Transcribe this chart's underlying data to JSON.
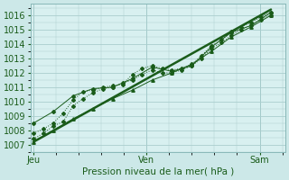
{
  "xlabel": "Pression niveau de la mer( hPa )",
  "bg_color": "#cce8e8",
  "plot_bg_color": "#d8f0f0",
  "grid_color": "#aacece",
  "line_color": "#1a5c1a",
  "x_ticks_pos": [
    0,
    0.4762,
    0.9524
  ],
  "x_tick_labels": [
    "Jeu",
    "Ven",
    "Sam"
  ],
  "ylim": [
    1006.5,
    1016.8
  ],
  "xlim": [
    -0.01,
    1.06
  ],
  "yticks": [
    1007,
    1008,
    1009,
    1010,
    1011,
    1012,
    1013,
    1014,
    1015,
    1016
  ],
  "series1_x": [
    0.0,
    0.042,
    0.083,
    0.125,
    0.167,
    0.208,
    0.25,
    0.292,
    0.333,
    0.375,
    0.417,
    0.458,
    0.5,
    0.542,
    0.583,
    0.625,
    0.667,
    0.708,
    0.75,
    0.792,
    0.833,
    0.875,
    0.917,
    0.958,
    1.0
  ],
  "series1_y": [
    1007.4,
    1007.8,
    1008.3,
    1008.6,
    1009.7,
    1010.2,
    1010.6,
    1010.9,
    1011.0,
    1011.3,
    1011.5,
    1011.9,
    1012.2,
    1012.0,
    1012.0,
    1012.2,
    1012.5,
    1013.0,
    1013.7,
    1014.1,
    1014.6,
    1015.0,
    1015.3,
    1015.7,
    1016.0
  ],
  "series2_x": [
    0.0,
    0.042,
    0.083,
    0.125,
    0.167,
    0.208,
    0.25,
    0.292,
    0.333,
    0.375,
    0.417,
    0.458,
    0.5,
    0.542,
    0.583,
    0.625,
    0.667,
    0.708,
    0.75,
    0.792,
    0.833,
    0.875,
    0.917,
    0.958,
    1.0
  ],
  "series2_y": [
    1007.8,
    1008.1,
    1008.5,
    1009.2,
    1010.1,
    1010.7,
    1010.8,
    1011.0,
    1011.1,
    1011.2,
    1011.9,
    1012.3,
    1012.5,
    1012.3,
    1012.2,
    1012.3,
    1012.6,
    1013.2,
    1013.9,
    1014.3,
    1014.9,
    1015.2,
    1015.5,
    1015.9,
    1016.2
  ],
  "series3_x": [
    0.0,
    0.083,
    0.167,
    0.25,
    0.333,
    0.417,
    0.5,
    0.583,
    0.667,
    0.75,
    0.833,
    0.917,
    1.0
  ],
  "series3_y": [
    1008.5,
    1009.3,
    1010.4,
    1010.9,
    1011.0,
    1011.6,
    1012.4,
    1012.1,
    1012.5,
    1013.8,
    1014.8,
    1015.3,
    1016.2
  ],
  "series4_x": [
    0.0,
    0.083,
    0.167,
    0.25,
    0.333,
    0.417,
    0.5,
    0.583,
    0.667,
    0.75,
    0.833,
    0.917,
    1.0
  ],
  "series4_y": [
    1007.2,
    1008.0,
    1008.8,
    1009.5,
    1010.2,
    1010.8,
    1011.5,
    1012.0,
    1012.6,
    1013.5,
    1014.5,
    1015.2,
    1016.0
  ],
  "trend_x": [
    0.0,
    1.0
  ],
  "trend_y": [
    1007.2,
    1016.4
  ]
}
